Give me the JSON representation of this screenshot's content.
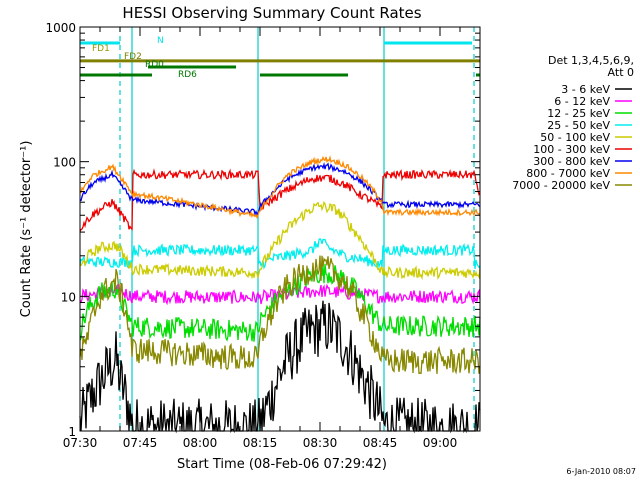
{
  "chart_data": {
    "type": "line",
    "title": "HESSI Observing Summary Count Rates",
    "xlabel": "Start Time (08-Feb-06 07:29:42)",
    "ylabel": "Count Rate (s⁻¹ detector⁻¹)",
    "y_scale": "log",
    "ylim": [
      1,
      1000
    ],
    "y_ticks": [
      "1",
      "10",
      "100",
      "1000"
    ],
    "xlim_minutes": [
      0,
      100
    ],
    "x_ticks": [
      {
        "label": "07:30",
        "minute": 0
      },
      {
        "label": "07:45",
        "minute": 15
      },
      {
        "label": "08:00",
        "minute": 30
      },
      {
        "label": "08:15",
        "minute": 45
      },
      {
        "label": "08:30",
        "minute": 60
      },
      {
        "label": "08:45",
        "minute": 75
      },
      {
        "label": "09:00",
        "minute": 90
      }
    ],
    "legend_header": [
      "Det 1,3,4,5,6,9,",
      "Att 0"
    ],
    "legend_position": "right",
    "grid": false,
    "footer": "6-Jan-2010 08:07",
    "flag_labels": [
      "N",
      "FD1",
      "FD2",
      "RD0",
      "RD6"
    ],
    "vertical_markers_minutes": [
      {
        "x": 10,
        "style": "dashed",
        "color": "#00cccc"
      },
      {
        "x": 13,
        "style": "solid",
        "color": "#00cccc"
      },
      {
        "x": 44.5,
        "style": "solid",
        "color": "#00cccc"
      },
      {
        "x": 76,
        "style": "solid",
        "color": "#00cccc"
      },
      {
        "x": 98.5,
        "style": "dashed",
        "color": "#00cccc"
      }
    ],
    "flags": [
      {
        "label": "N",
        "color": "#00e5ee",
        "y": 760,
        "segments": [
          [
            0,
            10
          ],
          [
            76,
            98
          ]
        ]
      },
      {
        "label": "FD1",
        "color": "#999900",
        "y": 620,
        "segments": []
      },
      {
        "label": "FD2",
        "color": "#808000",
        "y": 560,
        "segments": [
          [
            0,
            100
          ]
        ]
      },
      {
        "label": "RD0",
        "color": "#007700",
        "y": 505,
        "segments": [
          [
            17,
            39
          ]
        ]
      },
      {
        "label": "RD6",
        "color": "#007700",
        "y": 440,
        "segments": [
          [
            0,
            18
          ],
          [
            45,
            67
          ],
          [
            99,
            100
          ]
        ]
      }
    ],
    "series": [
      {
        "name": "3 - 6 keV",
        "color": "#000000",
        "x": [
          0,
          5,
          9,
          10,
          13,
          23,
          33,
          44,
          45,
          48,
          52,
          58,
          62,
          66,
          70,
          73,
          76,
          90,
          98,
          100
        ],
        "y": [
          1.1,
          2.3,
          3.4,
          2.4,
          1.1,
          1.05,
          1.05,
          1.05,
          1.1,
          1.8,
          3.5,
          5.6,
          6.0,
          4.5,
          2.7,
          1.8,
          1.1,
          1.05,
          1.05,
          1.05
        ]
      },
      {
        "name": "6 - 12 keV",
        "color": "#ff00ff",
        "x": [
          0,
          10,
          13,
          45,
          60,
          75,
          76,
          100
        ],
        "y": [
          10,
          11,
          10,
          9.8,
          11,
          10,
          10,
          10
        ]
      },
      {
        "name": "12 - 25 keV",
        "color": "#00dd00",
        "x": [
          0,
          2,
          5,
          9,
          10,
          13,
          44.5,
          45,
          48,
          52,
          58,
          62,
          66,
          70,
          73,
          75.5,
          76,
          100
        ],
        "y": [
          5.5,
          8,
          10.5,
          11.5,
          9.5,
          6,
          5.5,
          6.5,
          8.5,
          11,
          14.5,
          15,
          13.5,
          10,
          7.5,
          6,
          6,
          6
        ]
      },
      {
        "name": "25 - 50 keV",
        "color": "#00eeee",
        "x": [
          0,
          13,
          13.1,
          44.5,
          44.6,
          48,
          52,
          58,
          60,
          62,
          66,
          70,
          73,
          75.5,
          75.6,
          98.5,
          98.6,
          100
        ],
        "y": [
          18,
          18,
          22,
          22,
          17,
          19,
          20,
          22,
          26,
          23,
          20,
          19,
          18,
          17,
          22,
          22,
          17,
          17
        ]
      },
      {
        "name": "50 - 100 keV",
        "color": "#cccc00",
        "x": [
          0,
          2,
          5,
          9,
          10,
          13,
          44.5,
          48,
          52,
          58,
          60,
          64,
          68,
          72,
          75.5,
          100
        ],
        "y": [
          16,
          20,
          23,
          24,
          22,
          16,
          15,
          22,
          32,
          45,
          47,
          44,
          32,
          22,
          15,
          15
        ]
      },
      {
        "name": "100 - 300 keV",
        "color": "#ee0000",
        "x": [
          0,
          3,
          8,
          10,
          13,
          13.1,
          44.5,
          45,
          48,
          52,
          58,
          62,
          66,
          70,
          73,
          75.5,
          75.6,
          98.5,
          100
        ],
        "y": [
          32,
          40,
          50,
          42,
          30,
          80,
          80,
          45,
          52,
          62,
          75,
          76,
          68,
          57,
          51,
          45,
          80,
          80,
          55
        ]
      },
      {
        "name": "300 - 800 keV",
        "color": "#0000ee",
        "x": [
          0,
          3,
          8,
          10,
          13,
          44.5,
          45,
          48,
          52,
          58,
          62,
          66,
          70,
          73,
          75.5,
          76,
          98.5,
          100
        ],
        "y": [
          52,
          68,
          80,
          68,
          52,
          42,
          46,
          58,
          75,
          90,
          92,
          85,
          72,
          60,
          50,
          48,
          48,
          48
        ]
      },
      {
        "name": "800 - 7000 keV",
        "color": "#ff8800",
        "x": [
          0,
          3,
          8,
          10,
          13,
          44.5,
          45,
          48,
          52,
          58,
          62,
          66,
          70,
          73,
          75.5,
          76,
          98.5,
          100
        ],
        "y": [
          58,
          78,
          92,
          78,
          58,
          39,
          43,
          58,
          80,
          100,
          105,
          95,
          78,
          63,
          50,
          42,
          42,
          42
        ]
      },
      {
        "name": "7000 - 20000 keV",
        "color": "#888800",
        "x": [
          0,
          2,
          5,
          9,
          10,
          13,
          44.5,
          45,
          48,
          52,
          58,
          62,
          66,
          70,
          73,
          75.5,
          76,
          100
        ],
        "y": [
          3.5,
          5,
          10,
          13,
          11,
          4,
          3.4,
          4.5,
          7.5,
          12,
          16,
          16,
          13,
          8,
          5.2,
          3.5,
          3.3,
          3.3
        ]
      }
    ]
  }
}
